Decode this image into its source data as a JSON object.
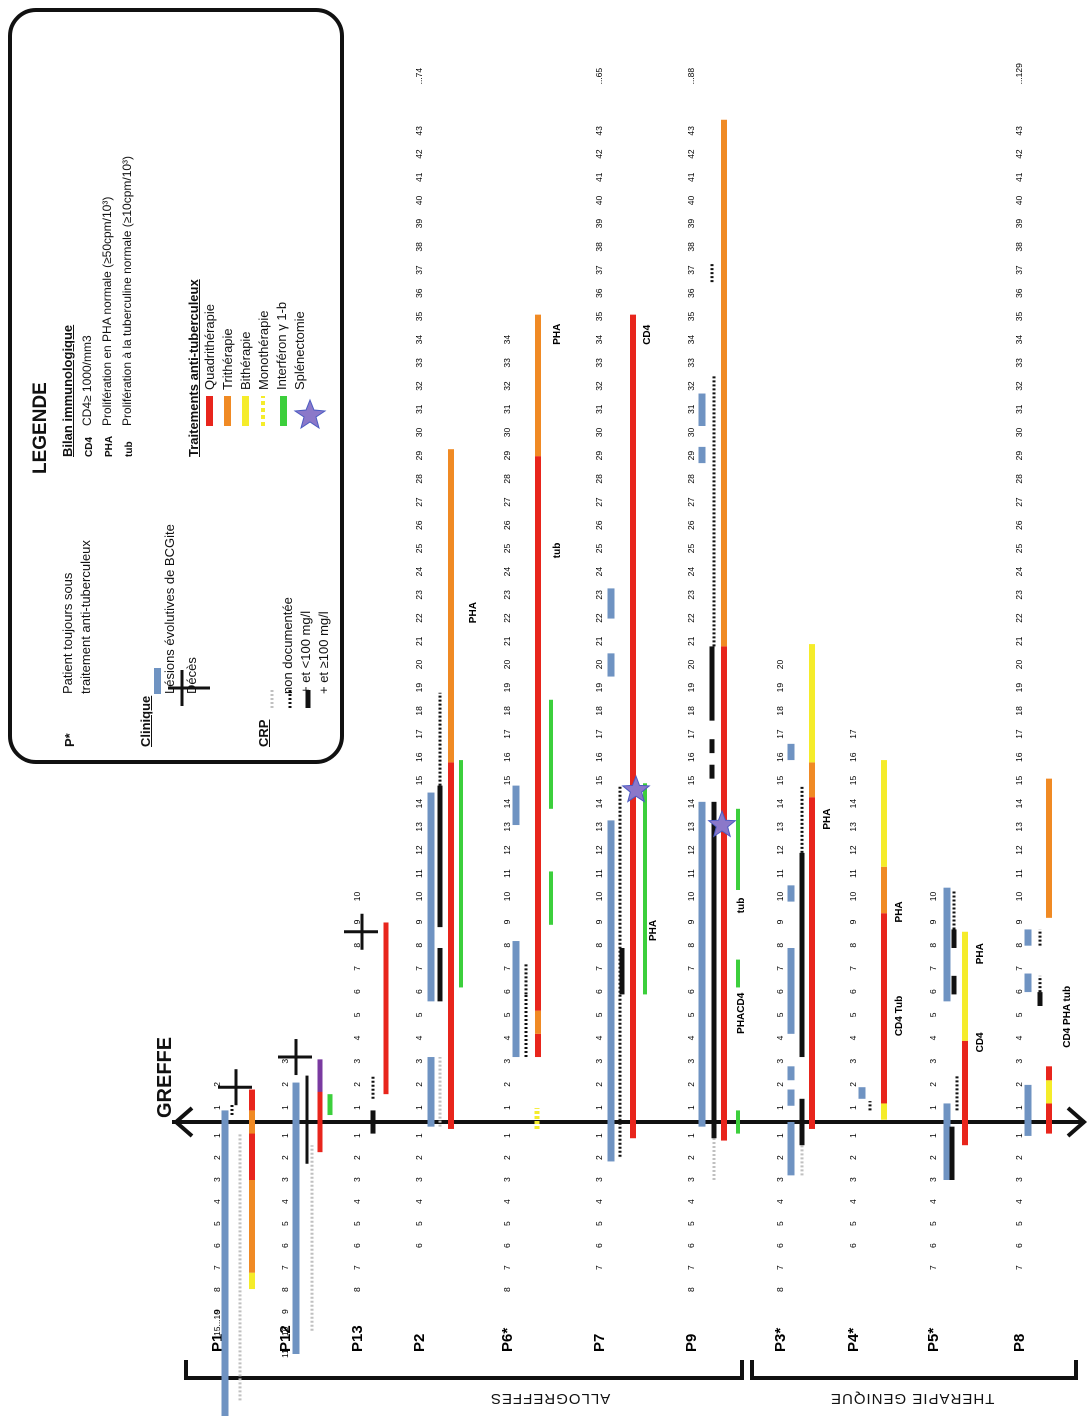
{
  "legend": {
    "title": "LEGENDE",
    "p_star_key": "P*",
    "p_star_text_line1": "Patient toujours sous",
    "p_star_text_line2": "traitement anti-tuberculeux",
    "clinique_title": "Clinique",
    "lesions_label": "Lésions évolutives de BCGite",
    "deces_label": "Décès",
    "crp_title": "CRP",
    "crp_items": [
      "non documentée",
      "+ et <100 mg/l",
      "+ et ≥100 mg/l"
    ],
    "bilan_title": "Bilan immunologique",
    "bilan_items": [
      {
        "key": "CD4",
        "text": "CD4≥ 1000/mm3"
      },
      {
        "key": "PHA",
        "text": "Prolifération en PHA normale (≥50cpm/10³)"
      },
      {
        "key": "tub",
        "text": "Prolifération à la tuberculine normale (≥10cpm/10³)"
      }
    ],
    "traitements_title": "Traitements anti-tuberculeux",
    "traitements_items": [
      "Quadrithérapie",
      "Trithérapie",
      "Bithérapie",
      "Monothérapie",
      "Interféron γ 1-b",
      "Splénectomie"
    ]
  },
  "colors": {
    "lesion": "#6f93c2",
    "quadri": "#e8251c",
    "tri": "#f08a24",
    "bi": "#f5ec2a",
    "mono": "#f5ec2a",
    "interferon": "#3ccf3c",
    "star": "#8b78c9",
    "crp_none": "#c0c0c0",
    "crp_pos": "#111111",
    "purple": "#7a3aa0"
  },
  "axis": {
    "label": "GREFFE"
  },
  "groups": {
    "allo": "ALLOGREFFES",
    "gene": "THERAPIE GENIQUE"
  },
  "patients": [
    {
      "id": "P1",
      "before": "15...10 9 8 7 6 5 4 3 2 1",
      "after": "1 2",
      "end": ""
    },
    {
      "id": "P12",
      "before": "11 10 9 8 7 6 5 4 3 2 1",
      "after": "1 2 3",
      "end": ""
    },
    {
      "id": "P13",
      "before": "8 7 6 5 4 3 2 1",
      "after": "1 2 3 4 5 6 7 8 9 10",
      "end": ""
    },
    {
      "id": "P2",
      "before": "6 5 4 3 2 1",
      "after": "1 2 3 4 5 6 7 8 9 10 11 12 13 14 15 16 17 18 19 20 21 22 23 24 25 26 27 28 29 30 31 32 33 34 35 36 37 38 39 40 41 42 43",
      "end": "...74"
    },
    {
      "id": "P6*",
      "before": "8 7 6 5 4 3 2 1",
      "after": "1 2 3 4 5 6 7 8 9 10 11 12 13 14 15 16 17 18 19 20 21 22 23 24 25 26 27 28 29 30 31 32 33 34",
      "end": ""
    },
    {
      "id": "P7",
      "before": "7 6 5 4 3 2 1",
      "after": "1 2 3 4 5 6 7 8 9 10 11 12 13 14 15 16 17 18 19 20 21 22 23 24 25 26 27 28 29 30 31 32 33 34 35 36 37 38 39 40 41 42 43",
      "end": "...65"
    },
    {
      "id": "P9",
      "before": "8 7 6 5 4 3 2 1",
      "after": "1 2 3 4 5 6 7 8 9 10 11 12 13 14 15 16 17 18 19 20 21 22 23 24 25 26 27 28 29 30 31 32 33 34 35 36 37 38 39 40 41 42 43",
      "end": "...88"
    },
    {
      "id": "P3*",
      "before": "8 7 6 5 4 3 2 1",
      "after": "1 2 3 4 5 6 7 8 9 10 11 12 13 14 15 16 17 18 19 20",
      "end": ""
    },
    {
      "id": "P4*",
      "before": "6 5 4 3 2 1",
      "after": "1 2 3 4 5 6 7 8 9 10 11 12 13 14 15 16 17",
      "end": ""
    },
    {
      "id": "P5*",
      "before": "7 6 5 4 3 2 1",
      "after": "1 2 3 4 5 6 7 8 9 10",
      "end": ""
    },
    {
      "id": "P8",
      "before": "7 6 5 4 3 2 1",
      "after": "1 2 3 4 5 6 7 8 9 10 11 12 13 14 15 16 17 18 19 20 21 22 23 24 25 26 27 28 29 30 31 32 33 34 35 36 37 38 39 40 41 42 43",
      "end": "...129"
    }
  ],
  "annotations": {
    "p2_pha": "PHA",
    "p6_tub": "tub",
    "p6_pha": "PHA",
    "p7_pha": "PHA",
    "p7_cd4": "CD4",
    "p9_phacd4": "PHACD4",
    "p9_tub": "tub",
    "p3_pha": "PHA",
    "p4_cd4tub": "CD4 Tub",
    "p4_pha": "PHA",
    "p5_cd4": "CD4",
    "p5_pha": "PHA",
    "p8_cd4phatub": "CD4 PHA tub"
  }
}
